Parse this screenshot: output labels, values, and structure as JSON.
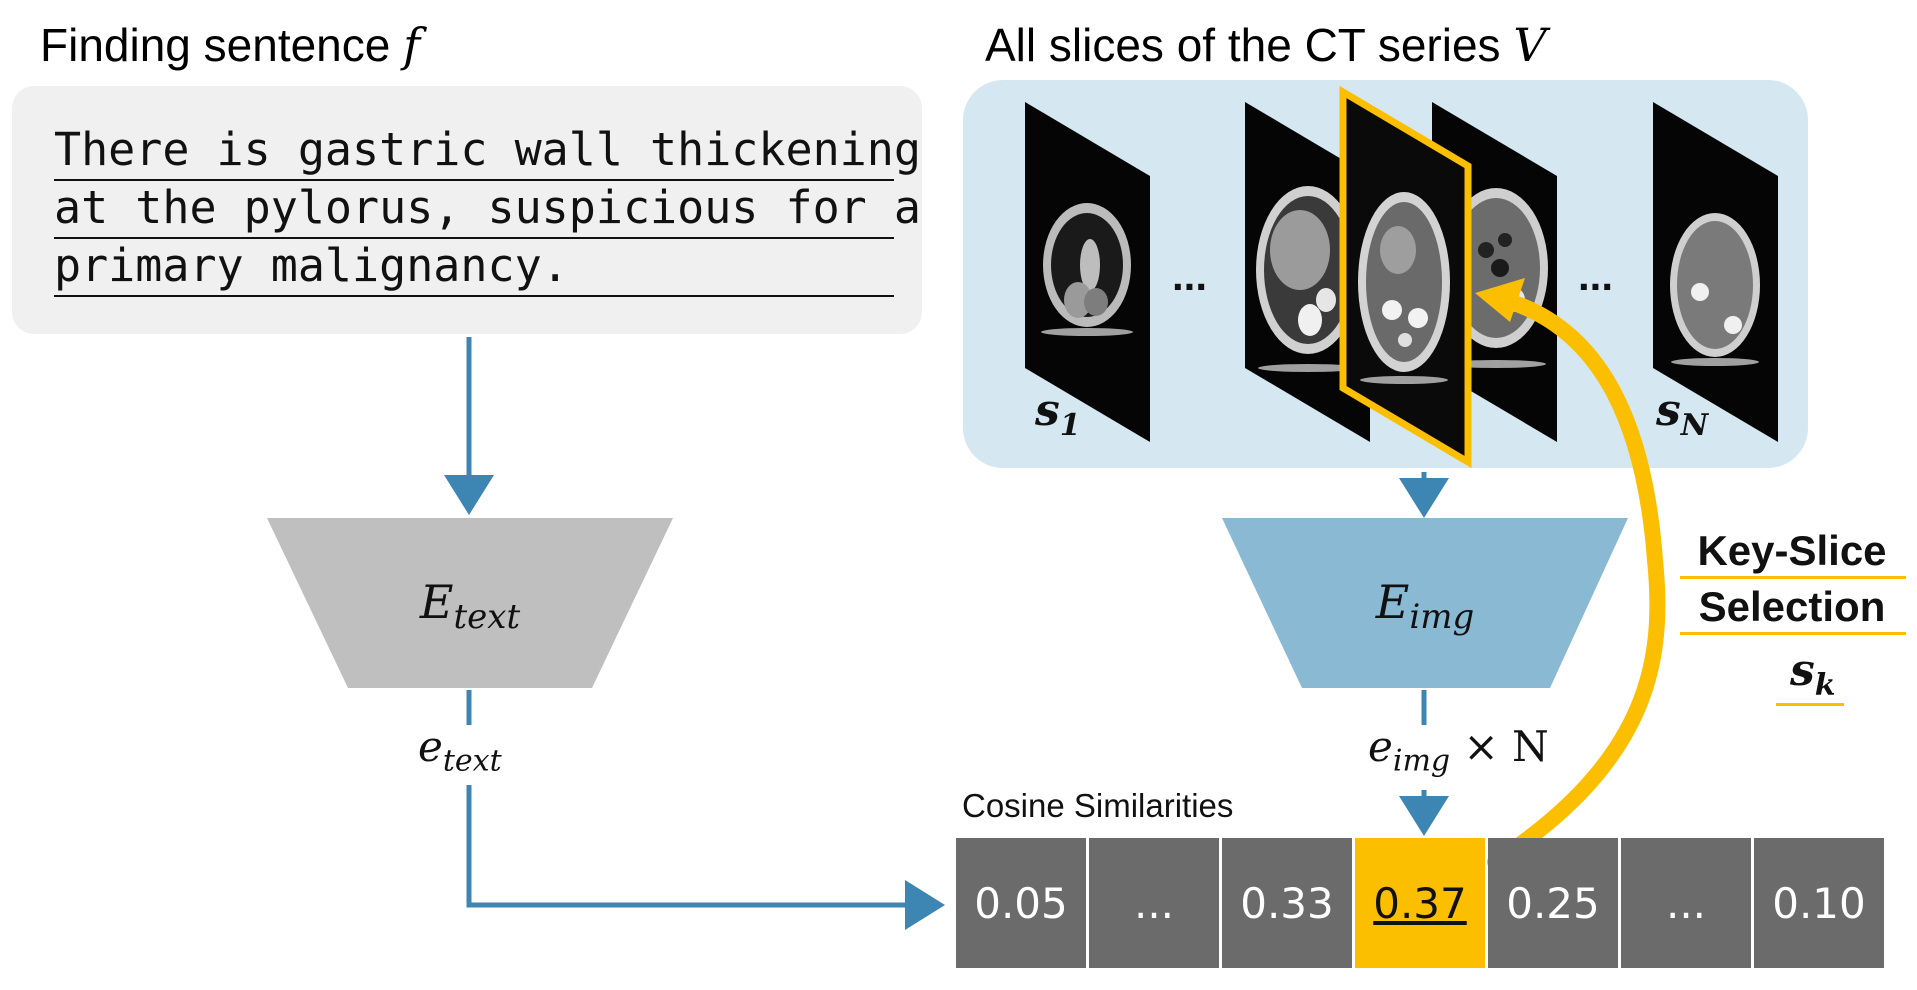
{
  "text_section": {
    "heading": "Finding sentence",
    "heading_symbol": "f",
    "sentence_lines": [
      "There is gastric wall thickening",
      "at the pylorus, suspicious for a",
      "primary malignancy."
    ]
  },
  "ct_section": {
    "heading": "All slices of the CT series",
    "heading_symbol": "V",
    "first_slice": {
      "label": "s",
      "sub": "1"
    },
    "last_slice": {
      "label": "s",
      "sub": "N"
    },
    "ellipsis_left": "...",
    "ellipsis_right": "..."
  },
  "text_encoder": {
    "label": "E",
    "sub": "text"
  },
  "image_encoder": {
    "label": "E",
    "sub": "img"
  },
  "text_embedding": {
    "label": "e",
    "sub": "text"
  },
  "image_embedding": {
    "label": "e",
    "sub": "img",
    "suffix": "× N"
  },
  "similarities": {
    "title": "Cosine Similarities",
    "cells": [
      "0.05",
      "...",
      "0.33",
      "0.37",
      "0.25",
      "...",
      "0.10"
    ],
    "highlight_index": 3
  },
  "key_slice": {
    "title_line1": "Key-Slice",
    "title_line2": "Selection",
    "symbol": "s",
    "symbol_sub": "k"
  },
  "colors": {
    "flow_arrow": "#3d86b3",
    "highlight": "#fbbf00",
    "text_encoder_fill": "#bfbfbf",
    "image_encoder_fill": "#8ab9d4",
    "cell_fill": "#6b6b6b",
    "panel_fill": "#d5e7f0"
  }
}
